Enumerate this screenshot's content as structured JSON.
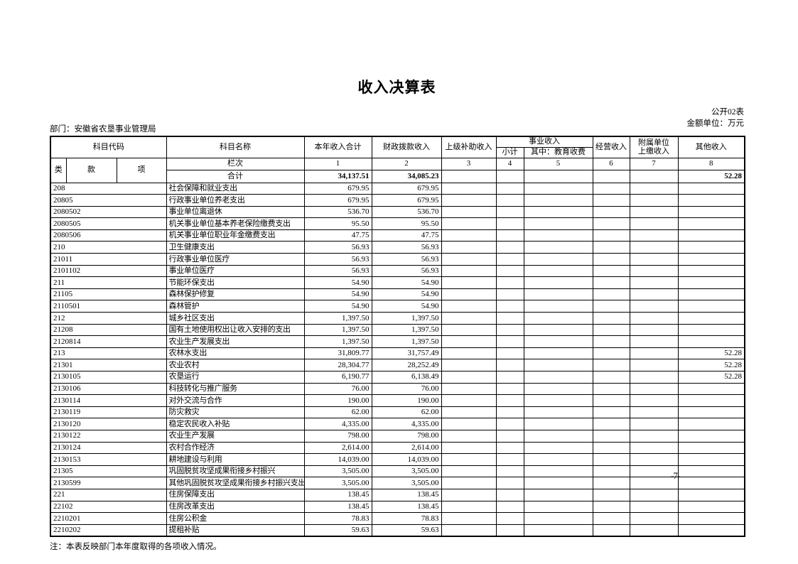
{
  "page": {
    "title": "收入决算表",
    "doc_label": "公开02表",
    "unit_label": "金额单位：万元",
    "department": "部门：安徽省农垦事业管理局",
    "note": "注：本表反映部门本年度取得的各项收入情况。",
    "page_number": "-7-"
  },
  "table": {
    "headers": {
      "subject_code": "科目代码",
      "subject_name": "科目名称",
      "current_year_total": "本年收入合计",
      "fiscal_appropriation": "财政拨款收入",
      "superior_subsidy": "上级补助收入",
      "business_income": "事业收入",
      "subtotal": "小计",
      "education_fee": "其中：教育收费",
      "operating_income": "经营收入",
      "affiliated_line1": "附属单位",
      "affiliated_line2": "上缴收入",
      "other_income": "其他收入",
      "cls": "类",
      "section": "款",
      "item": "项",
      "lanci": "栏次",
      "total": "合计"
    },
    "column_numbers": [
      "1",
      "2",
      "3",
      "4",
      "5",
      "6",
      "7",
      "8"
    ],
    "totals": [
      "34,137.51",
      "34,085.23",
      "",
      "",
      "",
      "",
      "",
      "52.28"
    ],
    "rows": [
      {
        "code": "208",
        "name": "社会保障和就业支出",
        "values": [
          "679.95",
          "679.95",
          "",
          "",
          "",
          "",
          "",
          ""
        ]
      },
      {
        "code": "20805",
        "name": "行政事业单位养老支出",
        "values": [
          "679.95",
          "679.95",
          "",
          "",
          "",
          "",
          "",
          ""
        ]
      },
      {
        "code": "2080502",
        "name": "事业单位离退休",
        "values": [
          "536.70",
          "536.70",
          "",
          "",
          "",
          "",
          "",
          ""
        ]
      },
      {
        "code": "2080505",
        "name": "机关事业单位基本养老保险缴费支出",
        "values": [
          "95.50",
          "95.50",
          "",
          "",
          "",
          "",
          "",
          ""
        ]
      },
      {
        "code": "2080506",
        "name": "机关事业单位职业年金缴费支出",
        "values": [
          "47.75",
          "47.75",
          "",
          "",
          "",
          "",
          "",
          ""
        ]
      },
      {
        "code": "210",
        "name": "卫生健康支出",
        "values": [
          "56.93",
          "56.93",
          "",
          "",
          "",
          "",
          "",
          ""
        ]
      },
      {
        "code": "21011",
        "name": "行政事业单位医疗",
        "values": [
          "56.93",
          "56.93",
          "",
          "",
          "",
          "",
          "",
          ""
        ]
      },
      {
        "code": "2101102",
        "name": "事业单位医疗",
        "values": [
          "56.93",
          "56.93",
          "",
          "",
          "",
          "",
          "",
          ""
        ]
      },
      {
        "code": "211",
        "name": "节能环保支出",
        "values": [
          "54.90",
          "54.90",
          "",
          "",
          "",
          "",
          "",
          ""
        ]
      },
      {
        "code": "21105",
        "name": "森林保护修复",
        "values": [
          "54.90",
          "54.90",
          "",
          "",
          "",
          "",
          "",
          ""
        ]
      },
      {
        "code": "2110501",
        "name": "森林管护",
        "values": [
          "54.90",
          "54.90",
          "",
          "",
          "",
          "",
          "",
          ""
        ]
      },
      {
        "code": "212",
        "name": "城乡社区支出",
        "values": [
          "1,397.50",
          "1,397.50",
          "",
          "",
          "",
          "",
          "",
          ""
        ]
      },
      {
        "code": "21208",
        "name": "国有土地使用权出让收入安排的支出",
        "values": [
          "1,397.50",
          "1,397.50",
          "",
          "",
          "",
          "",
          "",
          ""
        ]
      },
      {
        "code": "2120814",
        "name": "农业生产发展支出",
        "values": [
          "1,397.50",
          "1,397.50",
          "",
          "",
          "",
          "",
          "",
          ""
        ]
      },
      {
        "code": "213",
        "name": "农林水支出",
        "values": [
          "31,809.77",
          "31,757.49",
          "",
          "",
          "",
          "",
          "",
          "52.28"
        ]
      },
      {
        "code": "21301",
        "name": "农业农村",
        "values": [
          "28,304.77",
          "28,252.49",
          "",
          "",
          "",
          "",
          "",
          "52.28"
        ]
      },
      {
        "code": "2130105",
        "name": "农垦运行",
        "values": [
          "6,190.77",
          "6,138.49",
          "",
          "",
          "",
          "",
          "",
          "52.28"
        ]
      },
      {
        "code": "2130106",
        "name": "科技转化与推广服务",
        "values": [
          "76.00",
          "76.00",
          "",
          "",
          "",
          "",
          "",
          ""
        ]
      },
      {
        "code": "2130114",
        "name": "对外交流与合作",
        "values": [
          "190.00",
          "190.00",
          "",
          "",
          "",
          "",
          "",
          ""
        ]
      },
      {
        "code": "2130119",
        "name": "防灾救灾",
        "values": [
          "62.00",
          "62.00",
          "",
          "",
          "",
          "",
          "",
          ""
        ]
      },
      {
        "code": "2130120",
        "name": "稳定农民收入补贴",
        "values": [
          "4,335.00",
          "4,335.00",
          "",
          "",
          "",
          "",
          "",
          ""
        ]
      },
      {
        "code": "2130122",
        "name": "农业生产发展",
        "values": [
          "798.00",
          "798.00",
          "",
          "",
          "",
          "",
          "",
          ""
        ]
      },
      {
        "code": "2130124",
        "name": "农村合作经济",
        "values": [
          "2,614.00",
          "2,614.00",
          "",
          "",
          "",
          "",
          "",
          ""
        ]
      },
      {
        "code": "2130153",
        "name": "耕地建设与利用",
        "values": [
          "14,039.00",
          "14,039.00",
          "",
          "",
          "",
          "",
          "",
          ""
        ]
      },
      {
        "code": "21305",
        "name": "巩固脱贫攻坚成果衔接乡村振兴",
        "values": [
          "3,505.00",
          "3,505.00",
          "",
          "",
          "",
          "",
          "",
          ""
        ]
      },
      {
        "code": "2130599",
        "name": "其他巩固脱贫攻坚成果衔接乡村振兴支出",
        "values": [
          "3,505.00",
          "3,505.00",
          "",
          "",
          "",
          "",
          "",
          ""
        ]
      },
      {
        "code": "221",
        "name": "住房保障支出",
        "values": [
          "138.45",
          "138.45",
          "",
          "",
          "",
          "",
          "",
          ""
        ]
      },
      {
        "code": "22102",
        "name": "住房改革支出",
        "values": [
          "138.45",
          "138.45",
          "",
          "",
          "",
          "",
          "",
          ""
        ]
      },
      {
        "code": "2210201",
        "name": "住房公积金",
        "values": [
          "78.83",
          "78.83",
          "",
          "",
          "",
          "",
          "",
          ""
        ]
      },
      {
        "code": "2210202",
        "name": "提租补贴",
        "values": [
          "59.63",
          "59.63",
          "",
          "",
          "",
          "",
          "",
          ""
        ]
      }
    ]
  }
}
